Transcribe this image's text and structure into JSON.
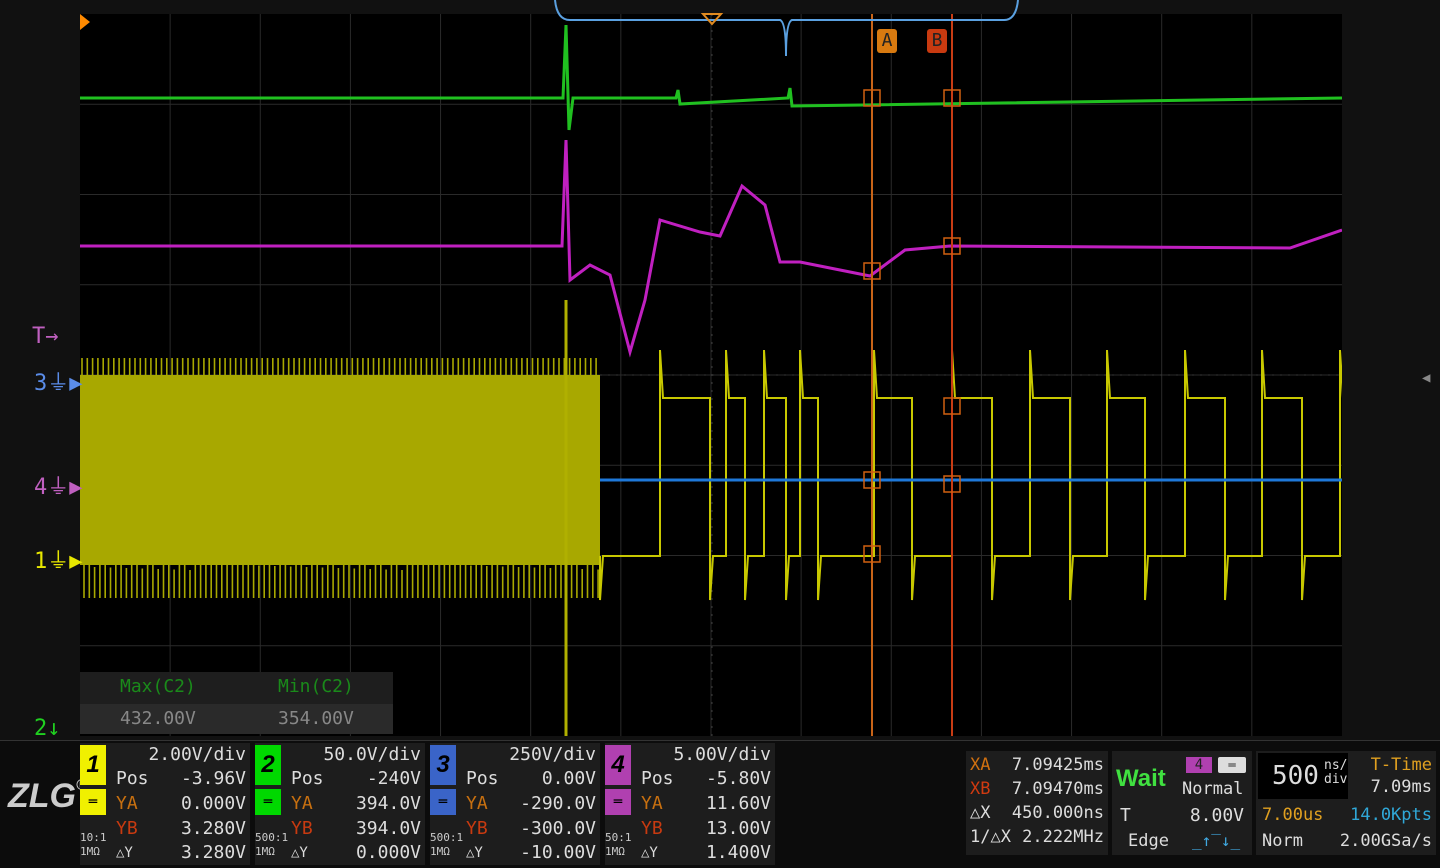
{
  "markers": {
    "trigger": "T",
    "ch3": "3",
    "ch4": "4",
    "ch1": "1",
    "ch2": "2",
    "cursor_a": "A",
    "cursor_b": "B"
  },
  "measurements": {
    "max_label": "Max(C2)",
    "max_value": "432.00V",
    "min_label": "Min(C2)",
    "min_value": "354.00V"
  },
  "brand": {
    "logo": "ZLG"
  },
  "channels": [
    {
      "num": "1",
      "color": "#f0f000",
      "scale": "2.00V/div",
      "pos_label": "Pos",
      "pos": "-3.96V",
      "ya_label": "YA",
      "ya": "0.000V",
      "yb_label": "YB",
      "yb": "3.280V",
      "dy_label": "△Y",
      "dy": "3.280V",
      "probe": "10:1",
      "imp": "1MΩ"
    },
    {
      "num": "2",
      "color": "#00d800",
      "scale": "50.0V/div",
      "pos_label": "Pos",
      "pos": "-240V",
      "ya_label": "YA",
      "ya": "394.0V",
      "yb_label": "YB",
      "yb": "394.0V",
      "dy_label": "△Y",
      "dy": "0.000V",
      "probe": "500:1",
      "imp": "1MΩ"
    },
    {
      "num": "3",
      "color": "#3a64c8",
      "scale": "250V/div",
      "pos_label": "Pos",
      "pos": "0.00V",
      "ya_label": "YA",
      "ya": "-290.0V",
      "yb_label": "YB",
      "yb": "-300.0V",
      "dy_label": "△Y",
      "dy": "-10.00V",
      "probe": "500:1",
      "imp": "1MΩ"
    },
    {
      "num": "4",
      "color": "#b040b0",
      "scale": "5.00V/div",
      "pos_label": "Pos",
      "pos": "-5.80V",
      "ya_label": "YA",
      "ya": "11.60V",
      "yb_label": "YB",
      "yb": "13.00V",
      "dy_label": "△Y",
      "dy": "1.400V",
      "probe": "50:1",
      "imp": "1MΩ"
    }
  ],
  "cursors": {
    "xa_label": "XA",
    "xa": "7.09425ms",
    "xb_label": "XB",
    "xb": "7.09470ms",
    "dx_label": "△X",
    "dx": "450.000ns",
    "inv_label": "1/△X",
    "inv": "2.222MHz"
  },
  "trigger": {
    "status": "Wait",
    "source": "4",
    "mode": "Normal",
    "level_label": "T",
    "level": "8.00V",
    "type": "Edge"
  },
  "timebase": {
    "value": "500",
    "unit_top": "ns/",
    "unit_bottom": "div",
    "ttime_label": "T-Time",
    "ttime": "7.09ms",
    "window": "7.00us",
    "points": "14.0Kpts",
    "acq": "Norm",
    "rate": "2.00GSa/s"
  }
}
